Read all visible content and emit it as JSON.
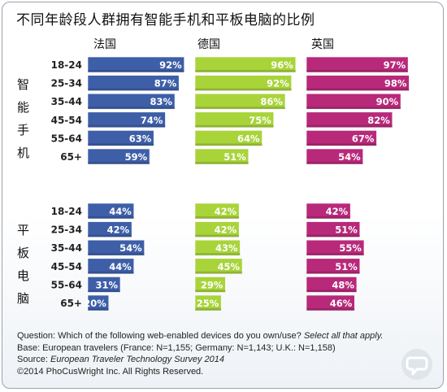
{
  "chart_data": {
    "type": "bar",
    "title": "不同年龄段人群拥有智能手机和平板电脑的比例",
    "countries": [
      "法国",
      "德国",
      "英国"
    ],
    "colors": [
      "#3e5fa8",
      "#a8d43a",
      "#b8297a"
    ],
    "age_groups": [
      "18-24",
      "25-34",
      "35-44",
      "45-54",
      "55-64",
      "65+"
    ],
    "xlim": [
      0,
      100
    ],
    "value_suffix": "%",
    "panels": [
      {
        "label": [
          "智",
          "能",
          "手",
          "机"
        ],
        "series": [
          {
            "name": "法国",
            "values": [
              92,
              87,
              83,
              74,
              63,
              59
            ]
          },
          {
            "name": "德国",
            "values": [
              96,
              92,
              86,
              75,
              64,
              51
            ]
          },
          {
            "name": "英国",
            "values": [
              97,
              98,
              90,
              82,
              67,
              54
            ]
          }
        ]
      },
      {
        "label": [
          "平",
          "板",
          "电",
          "脑"
        ],
        "series": [
          {
            "name": "法国",
            "values": [
              44,
              42,
              54,
              44,
              31,
              20
            ]
          },
          {
            "name": "德国",
            "values": [
              42,
              42,
              43,
              45,
              29,
              25
            ]
          },
          {
            "name": "英国",
            "values": [
              42,
              51,
              55,
              51,
              48,
              46
            ]
          }
        ]
      }
    ]
  },
  "footer": {
    "question_prefix": "Question: Which of the following web-enabled devices do you own/use?",
    "question_italic": "Select all that apply.",
    "base": "Base: European travelers (France: N=1,155; Germany: N=1,143; U.K.: N=1,158)",
    "source_prefix": "Source:",
    "source_italic": "European Traveler Technology Survey 2014",
    "copyright": "©2014 PhoCusWright Inc. All Rights Reserved."
  },
  "logo_icon": "phocuswright-speech-bubble-logo"
}
